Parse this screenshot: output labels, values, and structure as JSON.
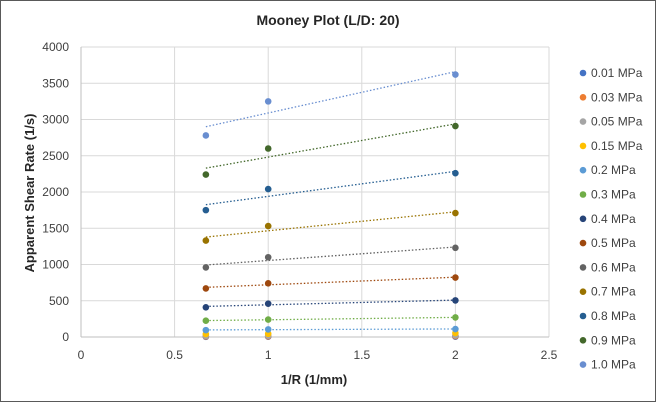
{
  "chart_data": {
    "type": "scatter",
    "title": "Mooney Plot (L/D: 20)",
    "xlabel": "1/R (1/mm)",
    "ylabel": "Apparent Shear Rate (1/s)",
    "xlim": [
      0,
      2.5
    ],
    "ylim": [
      0,
      4000
    ],
    "xticks": [
      0,
      0.5,
      1,
      1.5,
      2,
      2.5
    ],
    "xtick_labels": [
      "0",
      "0.5",
      "1",
      "1.5",
      "2",
      "2.5"
    ],
    "yticks": [
      0,
      500,
      1000,
      1500,
      2000,
      2500,
      3000,
      3500,
      4000
    ],
    "ytick_labels": [
      "0",
      "500",
      "1000",
      "1500",
      "2000",
      "2500",
      "3000",
      "3500",
      "4000"
    ],
    "grid": true,
    "legend_position": "right",
    "x": [
      0.667,
      1,
      2
    ],
    "series": [
      {
        "name": "0.01 MPa",
        "color": "#4472C4",
        "values": [
          3,
          4,
          5
        ],
        "trendline": false
      },
      {
        "name": "0.03 MPa",
        "color": "#ED7D31",
        "values": [
          8,
          10,
          12
        ],
        "trendline": false
      },
      {
        "name": "0.05 MPa",
        "color": "#A5A5A5",
        "values": [
          15,
          18,
          22
        ],
        "trendline": false
      },
      {
        "name": "0.15 MPa",
        "color": "#FFC000",
        "values": [
          40,
          45,
          55
        ],
        "trendline": false
      },
      {
        "name": "0.2 MPa",
        "color": "#5B9BD5",
        "values": [
          95,
          105,
          110
        ],
        "trendline": true
      },
      {
        "name": "0.3 MPa",
        "color": "#70AD47",
        "values": [
          225,
          240,
          270
        ],
        "trendline": true
      },
      {
        "name": "0.4 MPa",
        "color": "#264478",
        "values": [
          410,
          460,
          505
        ],
        "trendline": true
      },
      {
        "name": "0.5 MPa",
        "color": "#9E480E",
        "values": [
          670,
          740,
          820
        ],
        "trendline": true
      },
      {
        "name": "0.6 MPa",
        "color": "#636363",
        "values": [
          960,
          1100,
          1230
        ],
        "trendline": true
      },
      {
        "name": "0.7 MPa",
        "color": "#997300",
        "values": [
          1330,
          1530,
          1710
        ],
        "trendline": true
      },
      {
        "name": "0.8 MPa",
        "color": "#255E91",
        "values": [
          1750,
          2040,
          2260
        ],
        "trendline": true
      },
      {
        "name": "0.9 MPa",
        "color": "#43682B",
        "values": [
          2240,
          2600,
          2910
        ],
        "trendline": true
      },
      {
        "name": "1.0 MPa",
        "color": "#698ED0",
        "values": [
          2780,
          3250,
          3620
        ],
        "trendline": true
      }
    ]
  }
}
